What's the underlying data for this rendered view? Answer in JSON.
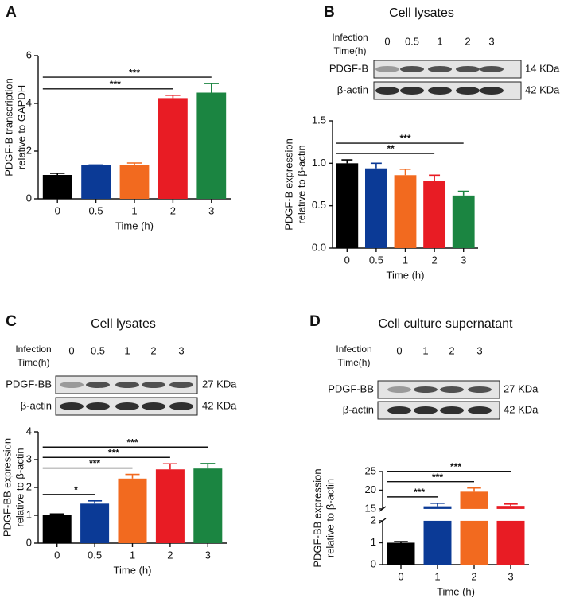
{
  "chart_data": [
    {
      "type": "bar",
      "label": "A",
      "ylabel": [
        "PDGF-B transcription",
        "relative to GAPDH"
      ],
      "xlabel": "Time (h)",
      "categories": [
        "0",
        "0.5",
        "1",
        "2",
        "3"
      ],
      "values": [
        1.0,
        1.4,
        1.43,
        4.22,
        4.45
      ],
      "errors": [
        0.07,
        0.02,
        0.07,
        0.12,
        0.38
      ],
      "colors": [
        "#000000",
        "#0b3a96",
        "#f26a1f",
        "#e81c24",
        "#1b8541"
      ],
      "ylim": [
        0,
        6
      ],
      "yticks": [
        0,
        2,
        4,
        6
      ],
      "significance": [
        {
          "from": "0",
          "to": "2",
          "label": "***"
        },
        {
          "from": "0",
          "to": "3",
          "label": "***"
        }
      ]
    },
    {
      "type": "bar",
      "label": "B",
      "blot": {
        "title": "Cell lysates",
        "header": [
          "Infection",
          "Time(h)"
        ],
        "lanes": [
          "0",
          "0.5",
          "1",
          "2",
          "3"
        ],
        "rows": [
          {
            "name": "PDGF-B",
            "size": "14 KDa"
          },
          {
            "name": "β-actin",
            "size": "42 KDa"
          }
        ]
      },
      "ylabel": [
        "PDGF-B expression",
        "relative to β-actin"
      ],
      "xlabel": "Time (h)",
      "categories": [
        "0",
        "0.5",
        "1",
        "2",
        "3"
      ],
      "values": [
        1.0,
        0.94,
        0.86,
        0.79,
        0.62
      ],
      "errors": [
        0.04,
        0.06,
        0.07,
        0.07,
        0.05
      ],
      "colors": [
        "#000000",
        "#0b3a96",
        "#f26a1f",
        "#e81c24",
        "#1b8541"
      ],
      "ylim": [
        0,
        1.5
      ],
      "yticks": [
        {
          "value": 0,
          "label": "0.0"
        },
        0.5,
        {
          "value": 1,
          "label": "1.0"
        },
        1.5
      ],
      "significance": [
        {
          "from": "0",
          "to": "2",
          "label": "**"
        },
        {
          "from": "0",
          "to": "3",
          "label": "***"
        }
      ]
    },
    {
      "type": "bar",
      "label": "C",
      "blot": {
        "title": "Cell lysates",
        "header": [
          "Infection",
          "Time(h)"
        ],
        "lanes": [
          "0",
          "0.5",
          "1",
          "2",
          "3"
        ],
        "rows": [
          {
            "name": "PDGF-BB",
            "size": "27 KDa"
          },
          {
            "name": "β-actin",
            "size": "42 KDa"
          }
        ]
      },
      "ylabel": [
        "PDGF-BB expression",
        "relative to β-actin"
      ],
      "xlabel": "Time (h)",
      "categories": [
        "0",
        "0.5",
        "1",
        "2",
        "3"
      ],
      "values": [
        1.0,
        1.42,
        2.32,
        2.65,
        2.68
      ],
      "errors": [
        0.05,
        0.1,
        0.15,
        0.2,
        0.18
      ],
      "colors": [
        "#000000",
        "#0b3a96",
        "#f26a1f",
        "#e81c24",
        "#1b8541"
      ],
      "ylim": [
        0,
        4
      ],
      "yticks": [
        0,
        1,
        2,
        3,
        4
      ],
      "significance": [
        {
          "from": "0",
          "to": "0.5",
          "label": "*"
        },
        {
          "from": "0",
          "to": "1",
          "label": "***"
        },
        {
          "from": "0",
          "to": "2",
          "label": "***"
        },
        {
          "from": "0",
          "to": "3",
          "label": "***"
        }
      ]
    },
    {
      "type": "bar",
      "label": "D",
      "blot": {
        "title": "Cell culture supernatant",
        "header": [
          "Infection",
          "Time(h)"
        ],
        "lanes": [
          "0",
          "1",
          "2",
          "3"
        ],
        "rows": [
          {
            "name": "PDGF-BB",
            "size": "27 KDa"
          },
          {
            "name": "β-actin",
            "size": "42 KDa"
          }
        ]
      },
      "ylabel": [
        "PDGF-BB expression",
        "relative to β-actin"
      ],
      "xlabel": "Time (h)",
      "categories": [
        "0",
        "1",
        "2",
        "3"
      ],
      "values": [
        1.0,
        15.7,
        19.6,
        15.8
      ],
      "errors": [
        0.05,
        0.8,
        1.0,
        0.5
      ],
      "colors": [
        "#000000",
        "#0b3a96",
        "#f26a1f",
        "#e81c24"
      ],
      "ylim": [
        0,
        25
      ],
      "ybreak": [
        2,
        15
      ],
      "yticks": [
        0,
        1,
        2,
        15,
        20,
        25
      ],
      "significance": [
        {
          "from": "0",
          "to": "1",
          "label": "***"
        },
        {
          "from": "0",
          "to": "2",
          "label": "***"
        },
        {
          "from": "0",
          "to": "3",
          "label": "***"
        }
      ]
    }
  ]
}
